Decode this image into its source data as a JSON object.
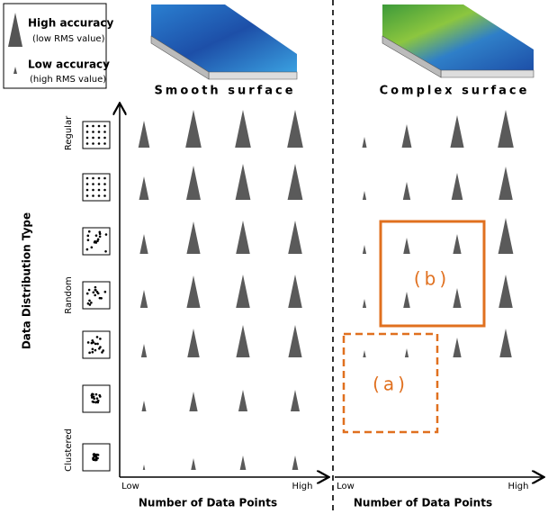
{
  "legend": {
    "high": {
      "title": "High accuracy",
      "note": "(low RMS value)"
    },
    "low": {
      "title": "Low accuracy",
      "note": "(high RMS value)"
    }
  },
  "panels": [
    {
      "title": "Smooth surface",
      "x_label": "Number of Data Points",
      "x_low": "Low",
      "x_high": "High"
    },
    {
      "title": "Complex surface",
      "x_label": "Number of Data Points",
      "x_low": "Low",
      "x_high": "High"
    }
  ],
  "y_axis": {
    "title": "Data Distribution Type",
    "labels": [
      "Regular",
      "Random",
      "Clustered"
    ]
  },
  "boxes": [
    "(b)",
    "(a)"
  ]
}
